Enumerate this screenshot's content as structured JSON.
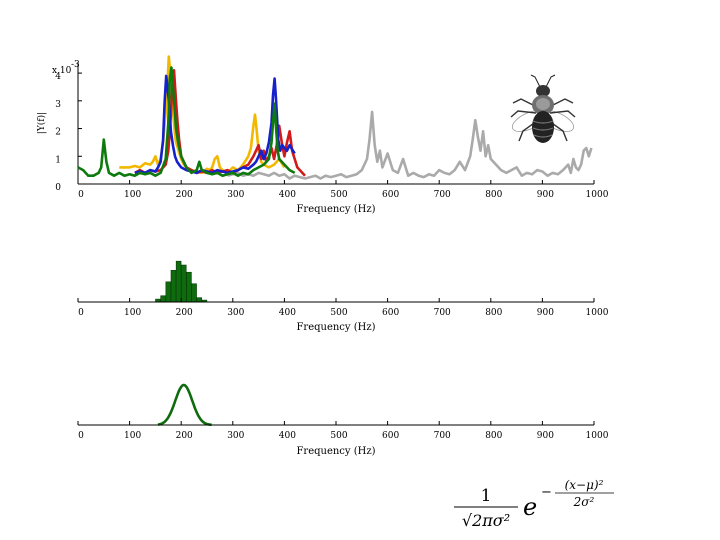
{
  "chart_data": [
    {
      "type": "line",
      "panel": "spectra",
      "title": "",
      "xlabel": "Frequency (Hz)",
      "ylabel": "|Y(f)|",
      "yscale_note": "x 10",
      "yscale_exponent": "-3",
      "xlim": [
        0,
        1000
      ],
      "ylim": [
        0,
        4.4
      ],
      "xticks": [
        0,
        100,
        200,
        300,
        400,
        500,
        600,
        700,
        800,
        900,
        1000
      ],
      "yticks": [
        0,
        1,
        2,
        3,
        4
      ],
      "grid": false,
      "series": [
        {
          "color": "#aaaaaa",
          "x": [
            290,
            300,
            310,
            320,
            330,
            340,
            350,
            360,
            370,
            380,
            390,
            400,
            410,
            420,
            430,
            440,
            450,
            460,
            470,
            480,
            490,
            500,
            510,
            520,
            530,
            540,
            550,
            560,
            565,
            570,
            575,
            580,
            585,
            590,
            600,
            610,
            620,
            630,
            640,
            650,
            660,
            670,
            680,
            690,
            700,
            710,
            720,
            730,
            740,
            750,
            760,
            765,
            770,
            775,
            780,
            785,
            790,
            795,
            800,
            810,
            820,
            830,
            840,
            850,
            860,
            870,
            880,
            890,
            900,
            910,
            920,
            930,
            940,
            950,
            955,
            960,
            965,
            970,
            975,
            980,
            985,
            990,
            995
          ],
          "values": [
            0.3,
            0.35,
            0.4,
            0.3,
            0.35,
            0.3,
            0.4,
            0.35,
            0.3,
            0.4,
            0.3,
            0.35,
            0.2,
            0.3,
            0.25,
            0.2,
            0.25,
            0.3,
            0.2,
            0.3,
            0.25,
            0.3,
            0.35,
            0.25,
            0.3,
            0.35,
            0.5,
            0.9,
            1.6,
            2.6,
            1.4,
            0.8,
            1.2,
            0.6,
            1.1,
            0.5,
            0.4,
            0.9,
            0.3,
            0.4,
            0.3,
            0.25,
            0.35,
            0.3,
            0.5,
            0.4,
            0.35,
            0.5,
            0.8,
            0.5,
            1.0,
            1.6,
            2.3,
            1.7,
            1.2,
            1.9,
            1.0,
            1.4,
            0.9,
            0.7,
            0.5,
            0.4,
            0.5,
            0.6,
            0.3,
            0.4,
            0.35,
            0.5,
            0.45,
            0.3,
            0.4,
            0.35,
            0.5,
            0.7,
            0.4,
            0.9,
            0.6,
            0.5,
            0.7,
            1.2,
            1.3,
            1.0,
            1.3
          ]
        },
        {
          "color": "#f2b800",
          "x": [
            80,
            100,
            110,
            120,
            130,
            140,
            145,
            150,
            155,
            160,
            165,
            170,
            173,
            176,
            178,
            180,
            182,
            185,
            188,
            190,
            195,
            200,
            205,
            210,
            220,
            230,
            240,
            250,
            255,
            260,
            265,
            270,
            275,
            280,
            290,
            300,
            310,
            320,
            330,
            335,
            340,
            343,
            346,
            350,
            355,
            360,
            370,
            380,
            390,
            400
          ],
          "values": [
            0.6,
            0.6,
            0.65,
            0.6,
            0.75,
            0.7,
            0.8,
            1.0,
            0.7,
            0.9,
            1.5,
            2.6,
            3.5,
            4.6,
            4.2,
            4.0,
            3.4,
            2.4,
            1.8,
            1.5,
            1.2,
            0.9,
            0.7,
            0.6,
            0.5,
            0.45,
            0.4,
            0.55,
            0.5,
            0.6,
            0.9,
            1.0,
            0.6,
            0.5,
            0.4,
            0.6,
            0.5,
            0.7,
            1.0,
            1.3,
            2.1,
            2.5,
            2.0,
            1.2,
            0.8,
            0.7,
            0.6,
            0.7,
            0.9,
            0.6
          ]
        },
        {
          "color": "#d11a1a",
          "x": [
            110,
            120,
            130,
            140,
            150,
            160,
            170,
            175,
            180,
            183,
            186,
            190,
            193,
            196,
            200,
            205,
            210,
            220,
            230,
            240,
            250,
            260,
            270,
            280,
            290,
            300,
            310,
            320,
            330,
            340,
            350,
            355,
            360,
            365,
            370,
            375,
            380,
            385,
            390,
            395,
            400,
            405,
            410,
            415,
            420,
            425,
            430,
            440
          ],
          "values": [
            0.4,
            0.5,
            0.4,
            0.5,
            0.45,
            0.5,
            0.7,
            1.2,
            2.5,
            3.6,
            4.1,
            3.0,
            2.2,
            1.6,
            1.0,
            0.8,
            0.6,
            0.5,
            0.4,
            0.45,
            0.4,
            0.5,
            0.4,
            0.45,
            0.5,
            0.4,
            0.5,
            0.6,
            0.7,
            1.0,
            1.4,
            0.9,
            1.2,
            0.8,
            1.0,
            1.3,
            0.9,
            1.4,
            2.1,
            1.5,
            1.0,
            1.5,
            1.9,
            1.2,
            0.9,
            0.6,
            0.5,
            0.3
          ]
        },
        {
          "color": "#1620cc",
          "x": [
            110,
            120,
            130,
            140,
            150,
            155,
            160,
            165,
            168,
            171,
            174,
            177,
            180,
            184,
            188,
            192,
            196,
            200,
            210,
            220,
            230,
            240,
            250,
            260,
            270,
            280,
            290,
            300,
            310,
            320,
            330,
            340,
            345,
            350,
            355,
            360,
            365,
            370,
            375,
            378,
            381,
            384,
            388,
            392,
            396,
            400,
            405,
            410,
            420
          ],
          "values": [
            0.4,
            0.45,
            0.4,
            0.5,
            0.45,
            0.6,
            0.8,
            1.6,
            3.0,
            3.9,
            3.4,
            2.8,
            1.9,
            1.4,
            1.0,
            0.8,
            0.7,
            0.6,
            0.5,
            0.45,
            0.4,
            0.5,
            0.45,
            0.4,
            0.5,
            0.45,
            0.4,
            0.45,
            0.5,
            0.6,
            0.55,
            0.7,
            0.8,
            1.0,
            1.2,
            0.9,
            1.1,
            1.5,
            2.2,
            3.2,
            3.8,
            3.0,
            1.6,
            1.2,
            1.4,
            1.3,
            1.2,
            1.4,
            1.1
          ]
        },
        {
          "color": "#0e7a0e",
          "x": [
            0,
            10,
            20,
            30,
            40,
            45,
            50,
            55,
            60,
            70,
            80,
            90,
            100,
            110,
            120,
            130,
            140,
            150,
            160,
            170,
            175,
            178,
            181,
            184,
            187,
            190,
            195,
            200,
            210,
            220,
            230,
            235,
            240,
            250,
            260,
            270,
            280,
            290,
            300,
            310,
            320,
            330,
            340,
            350,
            360,
            370,
            375,
            378,
            381,
            384,
            387,
            390,
            400,
            410,
            420
          ],
          "values": [
            0.6,
            0.5,
            0.3,
            0.3,
            0.4,
            0.6,
            1.6,
            0.8,
            0.4,
            0.3,
            0.4,
            0.3,
            0.35,
            0.3,
            0.4,
            0.35,
            0.4,
            0.3,
            0.4,
            0.9,
            2.2,
            3.8,
            4.2,
            3.5,
            2.8,
            2.0,
            1.4,
            1.0,
            0.6,
            0.4,
            0.5,
            0.8,
            0.5,
            0.4,
            0.35,
            0.4,
            0.3,
            0.35,
            0.4,
            0.3,
            0.4,
            0.35,
            0.5,
            0.6,
            0.7,
            0.9,
            1.5,
            2.2,
            2.9,
            2.0,
            1.2,
            0.9,
            0.7,
            0.5,
            0.4
          ]
        }
      ]
    },
    {
      "type": "bar",
      "panel": "histogram",
      "title": "",
      "xlabel": "Frequency (Hz)",
      "xlim": [
        0,
        1000
      ],
      "xticks": [
        0,
        100,
        200,
        300,
        400,
        500,
        600,
        700,
        800,
        900,
        1000
      ],
      "bin_width": 9.5,
      "color": "#0e6b0e",
      "bins": [
        155,
        165,
        175,
        185,
        195,
        205,
        215,
        225,
        235,
        245
      ],
      "values": [
        0.06,
        0.13,
        0.42,
        0.66,
        0.85,
        0.77,
        0.62,
        0.38,
        0.09,
        0.04
      ]
    },
    {
      "type": "line",
      "panel": "gaussian-fit",
      "title": "",
      "xlabel": "Frequency (Hz)",
      "xlim": [
        0,
        1000
      ],
      "xticks": [
        0,
        100,
        200,
        300,
        400,
        500,
        600,
        700,
        800,
        900,
        1000
      ],
      "color": "#0e6b0e",
      "gaussian": {
        "mean": 205,
        "sd": 16.5,
        "x_start": 155,
        "x_end": 260
      }
    }
  ],
  "formula": {
    "numerator": "1",
    "denominator": "√2πσ²",
    "base": "e",
    "exponent_sign": "−",
    "exponent_numerator": "(x−μ)²",
    "exponent_denominator": "2σ²"
  }
}
